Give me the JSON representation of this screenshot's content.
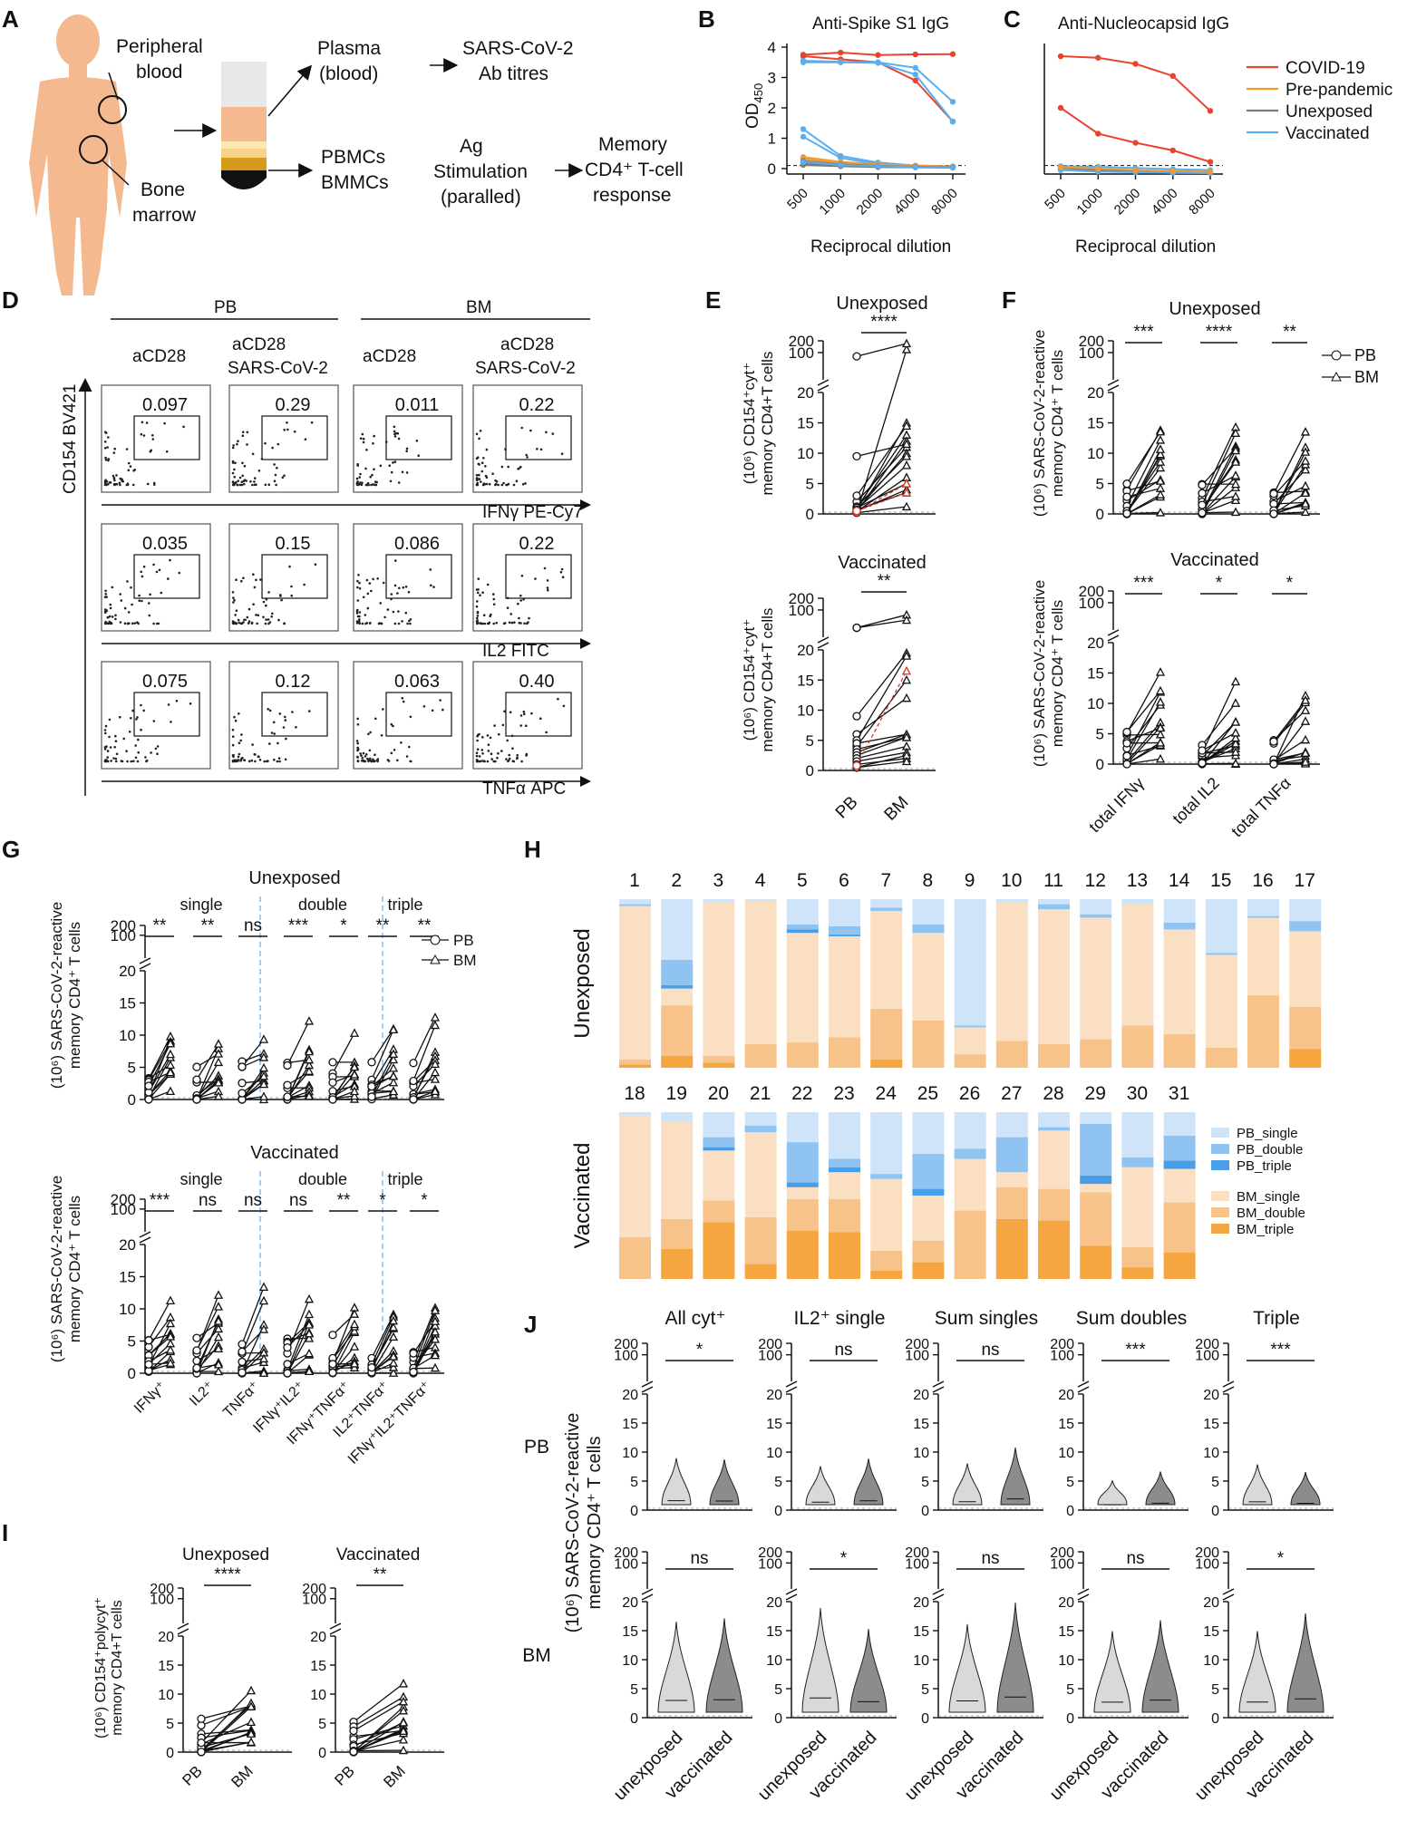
{
  "panel_labels": [
    "A",
    "B",
    "C",
    "D",
    "E",
    "F",
    "G",
    "H",
    "I",
    "J"
  ],
  "panelA": {
    "peripheral": [
      "Peripheral",
      "blood"
    ],
    "marrow": [
      "Bone",
      "marrow"
    ],
    "plasma": [
      "Plasma",
      "(blood)"
    ],
    "titres": [
      "SARS-CoV-2",
      "Ab titres"
    ],
    "cells": [
      "PBMCs",
      "BMMCs"
    ],
    "stim": [
      "Ag",
      "Stimulation",
      "(paralled)"
    ],
    "memory": [
      "Memory",
      "CD4⁺ T-cell",
      "response"
    ]
  },
  "chart_data": [
    {
      "id": "B",
      "type": "line",
      "title": "Anti-Spike S1 IgG",
      "ylabel_main": "OD",
      "ylabel_sub": "450",
      "xlabel": "Reciprocal dilution",
      "x": [
        "500",
        "1000",
        "2000",
        "4000",
        "8000"
      ],
      "yticks": [
        "0",
        "1",
        "2",
        "3",
        "4"
      ],
      "ylim": [
        0,
        4
      ],
      "colors": {
        "COVID-19": "#e8432d",
        "Pre-pandemic": "#f29a2e",
        "Unexposed": "#7a7a7a",
        "Vaccinated": "#5aaef0"
      },
      "series": [
        {
          "group": "COVID-19",
          "values": [
            3.75,
            3.82,
            3.74,
            3.76,
            3.77
          ]
        },
        {
          "group": "COVID-19",
          "values": [
            3.7,
            3.6,
            3.5,
            2.9,
            1.55
          ]
        },
        {
          "group": "Vaccinated",
          "values": [
            3.55,
            3.52,
            3.5,
            3.32,
            2.2
          ]
        },
        {
          "group": "Vaccinated",
          "values": [
            3.5,
            3.5,
            3.48,
            3.1,
            1.55
          ]
        },
        {
          "group": "Vaccinated",
          "values": [
            1.3,
            0.42,
            0.2,
            0.1,
            0.07
          ]
        },
        {
          "group": "Vaccinated",
          "values": [
            1.05,
            0.35,
            0.15,
            0.08,
            0.06
          ]
        },
        {
          "group": "Pre-pandemic",
          "values": [
            0.38,
            0.22,
            0.14,
            0.1,
            0.07
          ]
        },
        {
          "group": "Pre-pandemic",
          "values": [
            0.32,
            0.18,
            0.12,
            0.08,
            0.06
          ]
        },
        {
          "group": "Unexposed",
          "values": [
            0.25,
            0.14,
            0.09,
            0.06,
            0.05
          ]
        },
        {
          "group": "Unexposed",
          "values": [
            0.18,
            0.1,
            0.07,
            0.05,
            0.04
          ]
        },
        {
          "group": "Unexposed",
          "values": [
            0.12,
            0.08,
            0.05,
            0.04,
            0.03
          ]
        },
        {
          "group": "Vaccinated",
          "values": [
            0.22,
            0.12,
            0.08,
            0.05,
            0.04
          ]
        }
      ]
    },
    {
      "id": "C",
      "type": "line",
      "title": "Anti-Nucleocapsid IgG",
      "xlabel": "Reciprocal dilution",
      "x": [
        "500",
        "1000",
        "2000",
        "4000",
        "8000"
      ],
      "ylim": [
        0,
        4
      ],
      "legend": [
        "COVID-19",
        "Pre-pandemic",
        "Unexposed",
        "Vaccinated"
      ],
      "colors": {
        "COVID-19": "#e8432d",
        "Pre-pandemic": "#f29a2e",
        "Unexposed": "#7a7a7a",
        "Vaccinated": "#5aaef0"
      },
      "series": [
        {
          "group": "COVID-19",
          "values": [
            3.7,
            3.65,
            3.45,
            3.05,
            1.9
          ]
        },
        {
          "group": "COVID-19",
          "values": [
            2.0,
            1.15,
            0.85,
            0.6,
            0.22
          ]
        },
        {
          "group": "Vaccinated",
          "values": [
            0.08,
            0.06,
            0.02,
            -0.02,
            -0.05
          ]
        },
        {
          "group": "Unexposed",
          "values": [
            0.02,
            -0.05,
            -0.08,
            -0.1,
            -0.12
          ]
        },
        {
          "group": "Vaccinated",
          "values": [
            -0.05,
            -0.1,
            -0.12,
            -0.14,
            -0.15
          ]
        },
        {
          "group": "Pre-pandemic",
          "values": [
            0.05,
            0.0,
            -0.05,
            -0.08,
            -0.1
          ]
        }
      ]
    },
    {
      "id": "D",
      "type": "scatter",
      "column_groups": [
        "PB",
        "BM"
      ],
      "columns": [
        [
          "aCD28"
        ],
        [
          "aCD28",
          "SARS-CoV-2"
        ],
        [
          "aCD28"
        ],
        [
          "aCD28",
          "SARS-CoV-2"
        ]
      ],
      "ylabel": "CD154 BV421",
      "row_labels": [
        "IFNγ PE-Cy7",
        "IL2 FITC",
        "TNFα APC"
      ],
      "values": [
        [
          "0.097",
          "0.29",
          "0.011",
          "0.22"
        ],
        [
          "0.035",
          "0.15",
          "0.086",
          "0.22"
        ],
        [
          "0.075",
          "0.12",
          "0.063",
          "0.40"
        ]
      ]
    },
    {
      "id": "E",
      "type": "line",
      "ylabel": [
        "(10⁶) CD154⁺cyt⁺",
        "memory CD4+T cells"
      ],
      "xlabels": [
        "PB",
        "BM"
      ],
      "yticks_low": [
        "0",
        "5",
        "10",
        "15",
        "20"
      ],
      "yticks_high": [
        "100",
        "200"
      ],
      "panels": [
        {
          "title": "Unexposed",
          "significance": "****",
          "pairs": [
            [
              0.2,
              120
            ],
            [
              0.5,
              15
            ],
            [
              1,
              13
            ],
            [
              0.3,
              12
            ],
            [
              2,
              11
            ],
            [
              0.6,
              10
            ],
            [
              1.2,
              9.5
            ],
            [
              0.8,
              8
            ],
            [
              0.4,
              6
            ],
            [
              1,
              5
            ],
            [
              0.7,
              3.5
            ],
            [
              0.2,
              1.2
            ],
            [
              9.5,
              11.5
            ],
            [
              3,
              14.5
            ],
            [
              80,
              170
            ],
            [
              0.5,
              4
            ]
          ],
          "red_pairs": [
            [
              0.3,
              5
            ],
            [
              0.5,
              3.5
            ]
          ]
        },
        {
          "title": "Vaccinated",
          "significance": "**",
          "pairs": [
            [
              35,
              75
            ],
            [
              35,
              55
            ],
            [
              9,
              19.5
            ],
            [
              6,
              12
            ],
            [
              5,
              19
            ],
            [
              4,
              15
            ],
            [
              4.5,
              6
            ],
            [
              3.5,
              5.5
            ],
            [
              3,
              6
            ],
            [
              2.5,
              5.5
            ],
            [
              2,
              4
            ],
            [
              1.5,
              3
            ],
            [
              1,
              2
            ],
            [
              0.5,
              2.5
            ],
            [
              0.5,
              1.5
            ]
          ],
          "red_pairs": [
            [
              0.8,
              16.5
            ]
          ]
        }
      ]
    },
    {
      "id": "F",
      "type": "line",
      "ylabel": [
        "(10⁶) SARS-CoV-2-reactive",
        "memory CD4⁺ T cells"
      ],
      "xlabels": [
        "total IFNγ",
        "total IL2",
        "total TNFα"
      ],
      "legend": [
        "PB",
        "BM"
      ],
      "panels": [
        {
          "title": "Unexposed",
          "significance": [
            "***",
            "****",
            "**"
          ]
        },
        {
          "title": "Vaccinated",
          "significance": [
            "***",
            "*",
            "*"
          ]
        }
      ]
    },
    {
      "id": "G",
      "type": "line",
      "ylabel": [
        "(10⁶) SARS-CoV-2-reactive",
        "memory CD4⁺ T cells"
      ],
      "groups": [
        "single",
        "double",
        "triple"
      ],
      "xlabels": [
        "IFNγ⁺",
        "IL2⁺",
        "TNFα⁺",
        "IFNγ⁺IL2⁺",
        "IFNγ⁺TNFα⁺",
        "IL2⁺TNFα⁺",
        "IFNγ⁺IL2⁺TNFα⁺"
      ],
      "legend": [
        "PB",
        "BM"
      ],
      "panels": [
        {
          "title": "Unexposed",
          "significance": [
            "**",
            "**",
            "ns",
            "***",
            "*",
            "**",
            "**"
          ]
        },
        {
          "title": "Vaccinated",
          "significance": [
            "***",
            "ns",
            "ns",
            "ns",
            "**",
            "*",
            "*"
          ]
        }
      ]
    },
    {
      "id": "H",
      "type": "bar",
      "stacked": true,
      "rows": [
        {
          "label": "Unexposed",
          "categories": [
            "1",
            "2",
            "3",
            "4",
            "5",
            "6",
            "7",
            "8",
            "9",
            "10",
            "11",
            "12",
            "13",
            "14",
            "15",
            "16",
            "17"
          ]
        },
        {
          "label": "Vaccinated",
          "categories": [
            "18",
            "19",
            "20",
            "21",
            "22",
            "23",
            "24",
            "25",
            "26",
            "27",
            "28",
            "29",
            "30",
            "31"
          ]
        }
      ],
      "stack_order": [
        "BM_triple",
        "BM_double",
        "BM_single",
        "PB_triple",
        "PB_double",
        "PB_single"
      ],
      "legend": [
        "PB_single",
        "PB_double",
        "PB_triple",
        "BM_single",
        "BM_double",
        "BM_triple"
      ],
      "colors": {
        "PB_single": "#cfe3f9",
        "PB_double": "#8ec3f2",
        "PB_triple": "#4a9ee8",
        "BM_single": "#fbdfc2",
        "BM_double": "#f7c38a",
        "BM_triple": "#f5a640"
      },
      "values": {
        "1": [
          2,
          3,
          91,
          0,
          1,
          3
        ],
        "2": [
          7,
          30,
          10,
          2,
          15,
          36
        ],
        "3": [
          3,
          4,
          91,
          0,
          0,
          2
        ],
        "4": [
          0,
          14,
          85,
          0,
          0,
          1
        ],
        "5": [
          0,
          15,
          65,
          2,
          3,
          15
        ],
        "6": [
          0,
          18,
          60,
          1,
          5,
          16
        ],
        "7": [
          5,
          30,
          58,
          0,
          2,
          5
        ],
        "8": [
          0,
          28,
          52,
          0,
          5,
          15
        ],
        "9": [
          0,
          8,
          16,
          0,
          1,
          75
        ],
        "10": [
          0,
          16,
          82,
          0,
          0,
          2
        ],
        "11": [
          0,
          14,
          80,
          0,
          3,
          3
        ],
        "12": [
          0,
          17,
          72,
          0,
          2,
          9
        ],
        "13": [
          0,
          25,
          72,
          0,
          0,
          3
        ],
        "14": [
          0,
          20,
          62,
          0,
          4,
          14
        ],
        "15": [
          0,
          12,
          55,
          0,
          1,
          32
        ],
        "16": [
          0,
          43,
          46,
          0,
          1,
          10
        ],
        "17": [
          11,
          25,
          45,
          0,
          6,
          13
        ],
        "18": [
          0,
          25,
          73,
          0,
          0,
          2
        ],
        "19": [
          18,
          18,
          58,
          0,
          0,
          6
        ],
        "20": [
          34,
          13,
          30,
          2,
          6,
          15
        ],
        "21": [
          9,
          28,
          51,
          0,
          4,
          8
        ],
        "22": [
          29,
          19,
          7,
          3,
          24,
          18
        ],
        "23": [
          28,
          20,
          16,
          3,
          5,
          28
        ],
        "24": [
          5,
          12,
          43,
          0,
          3,
          37
        ],
        "25": [
          10,
          13,
          27,
          4,
          21,
          25
        ],
        "26": [
          0,
          41,
          31,
          0,
          6,
          22
        ],
        "27": [
          36,
          19,
          9,
          0,
          21,
          15
        ],
        "28": [
          35,
          19,
          35,
          0,
          2,
          9
        ],
        "29": [
          20,
          32,
          5,
          5,
          31,
          7
        ],
        "30": [
          7,
          12,
          48,
          0,
          6,
          27
        ],
        "31": [
          16,
          30,
          20,
          5,
          15,
          14
        ]
      }
    },
    {
      "id": "I",
      "type": "line",
      "ylabel": [
        "(10⁶) CD154⁺polycyt⁺",
        "memory CD4+T cells"
      ],
      "xlabels": [
        "PB",
        "BM"
      ],
      "panels": [
        {
          "title": "Unexposed",
          "significance": "****"
        },
        {
          "title": "Vaccinated",
          "significance": "**"
        }
      ]
    },
    {
      "id": "J",
      "type": "violin",
      "ylabel": [
        "(10⁶) SARS-CoV-2-reactive",
        "memory CD4⁺ T cells"
      ],
      "row_labels": [
        "PB",
        "BM"
      ],
      "columns": [
        "All cyt⁺",
        "IL2⁺ single",
        "Sum singles",
        "Sum doubles",
        "Triple"
      ],
      "xlabels": [
        "unexposed",
        "vaccinated"
      ],
      "significance": {
        "PB": [
          "*",
          "ns",
          "ns",
          "***",
          "***"
        ],
        "BM": [
          "ns",
          "*",
          "ns",
          "ns",
          "*"
        ]
      }
    }
  ]
}
